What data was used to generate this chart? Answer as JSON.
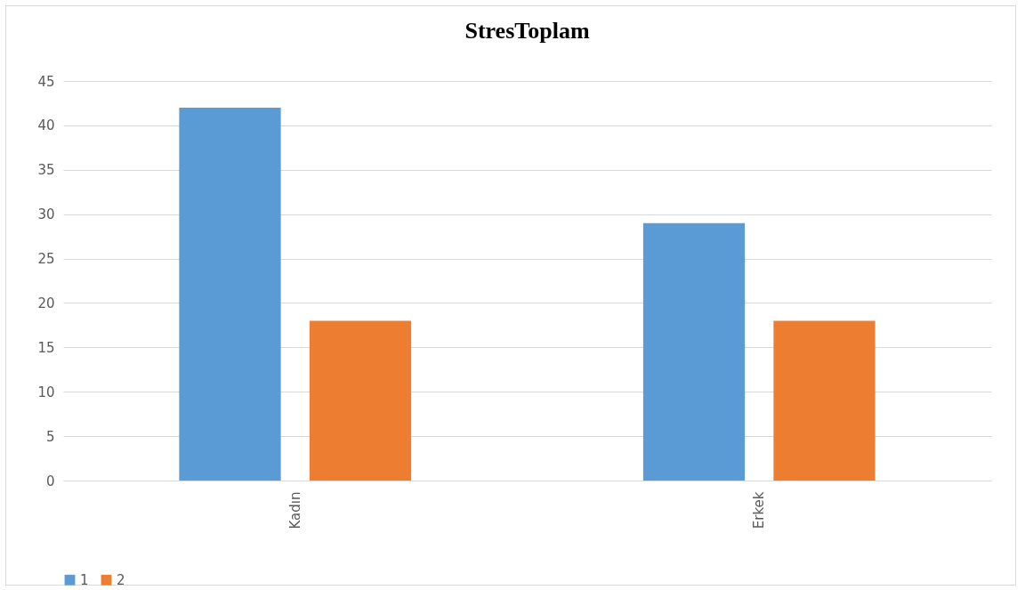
{
  "chart_data": {
    "type": "bar",
    "title": "StresToplam",
    "categories": [
      "Kadın",
      "Erkek"
    ],
    "series": [
      {
        "name": "1",
        "color": "#5b9bd5",
        "values": [
          42,
          29
        ]
      },
      {
        "name": "2",
        "color": "#ed7d31",
        "values": [
          18,
          18
        ]
      }
    ],
    "ylim": [
      0,
      45
    ],
    "yticks": [
      0,
      5,
      10,
      15,
      20,
      25,
      30,
      35,
      40,
      45
    ],
    "grid": "y",
    "legend": "bottom"
  }
}
